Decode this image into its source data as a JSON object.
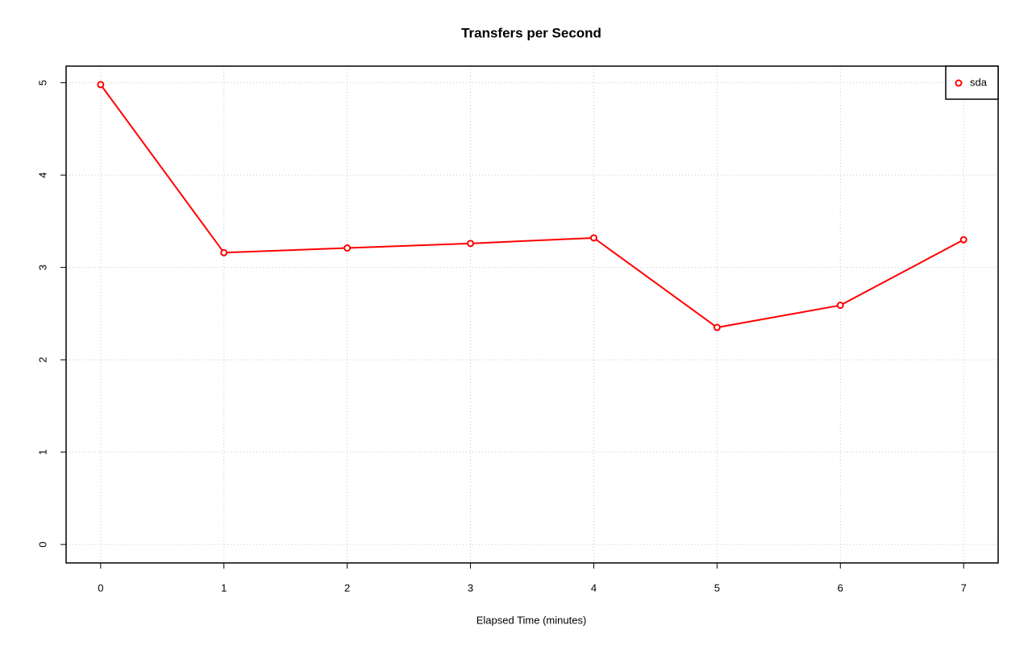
{
  "chart_data": {
    "type": "line",
    "title": "Transfers per Second",
    "x_label": "Elapsed Time (minutes)",
    "x": [
      0,
      1,
      2,
      3,
      4,
      5,
      6,
      7
    ],
    "series": [
      {
        "name": "sda",
        "color": "#ff0000",
        "values": [
          4.98,
          3.16,
          3.21,
          3.26,
          3.32,
          2.35,
          2.59,
          3.3
        ]
      }
    ],
    "xlim": [
      -0.28,
      7.28
    ],
    "ylim": [
      -0.2,
      5.18
    ],
    "xticks": [
      0,
      1,
      2,
      3,
      4,
      5,
      6,
      7
    ],
    "yticks": [
      0,
      1,
      2,
      3,
      4,
      5
    ],
    "grid": true,
    "legend_position": "top-right"
  }
}
